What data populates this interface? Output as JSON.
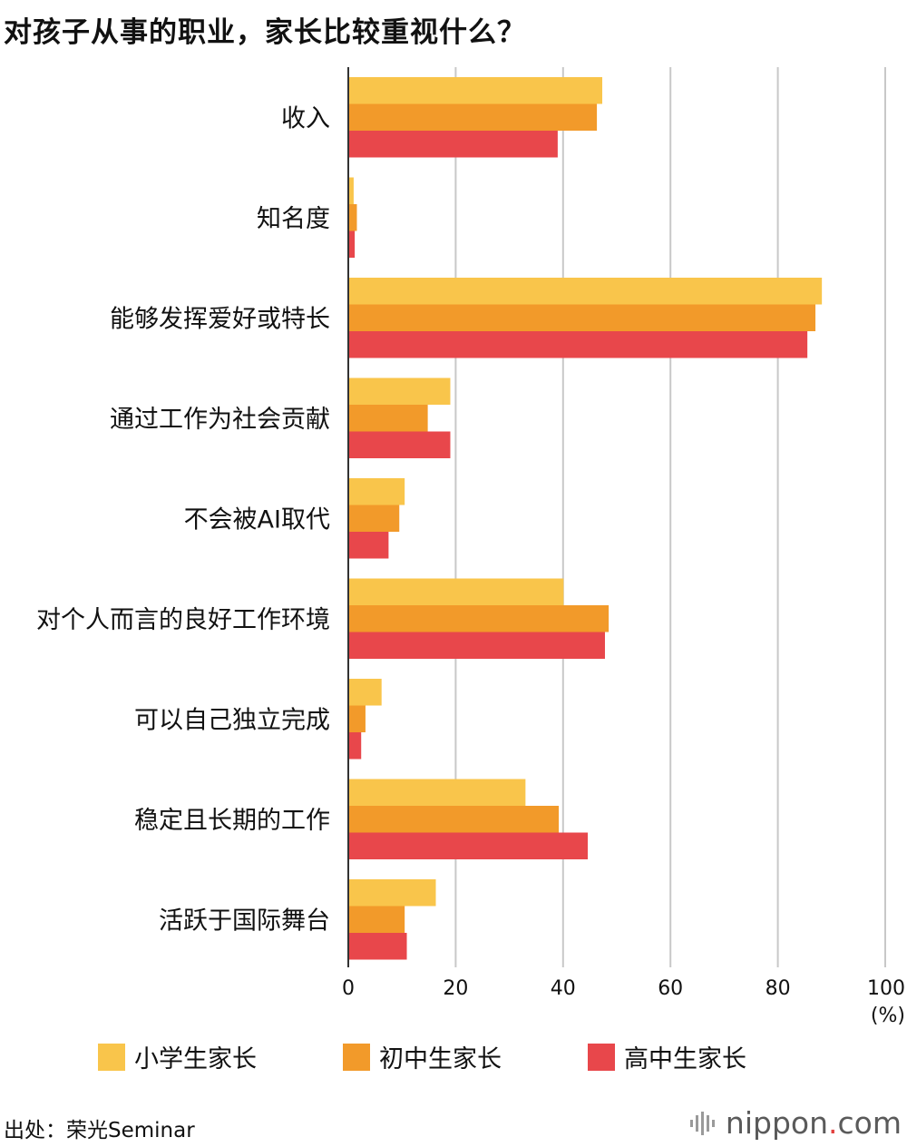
{
  "title": "对孩子从事的职业，家长比较重视什么？",
  "chart_data": {
    "type": "bar",
    "orientation": "horizontal",
    "categories": [
      "收入",
      "知名度",
      "能够发挥爱好或特长",
      "通过工作为社会贡献",
      "不会被AI取代",
      "对个人而言的良好工作环境",
      "可以自己独立完成",
      "稳定且长期的工作",
      "活跃于国际舞台"
    ],
    "series": [
      {
        "name": "小学生家长",
        "color": "#f9c54b",
        "values": [
          47.3,
          1.0,
          88.2,
          19.0,
          10.5,
          40.1,
          6.2,
          33.0,
          16.3
        ]
      },
      {
        "name": "初中生家长",
        "color": "#f29a2a",
        "values": [
          46.3,
          1.6,
          87.0,
          14.8,
          9.5,
          48.5,
          3.2,
          39.2,
          10.5
        ]
      },
      {
        "name": "高中生家长",
        "color": "#e8474b",
        "values": [
          39.0,
          1.2,
          85.5,
          19.0,
          7.5,
          47.8,
          2.4,
          44.6,
          10.9
        ]
      }
    ],
    "x_ticks": [
      "0",
      "20",
      "40",
      "60",
      "80",
      "100"
    ],
    "xlim": [
      0,
      100
    ],
    "x_unit": "(%)",
    "grid": true,
    "legend_position": "bottom"
  },
  "source": "出处：荣光Seminar",
  "logo": {
    "main": "nippon",
    "dot": ".",
    "suffix": "com"
  }
}
